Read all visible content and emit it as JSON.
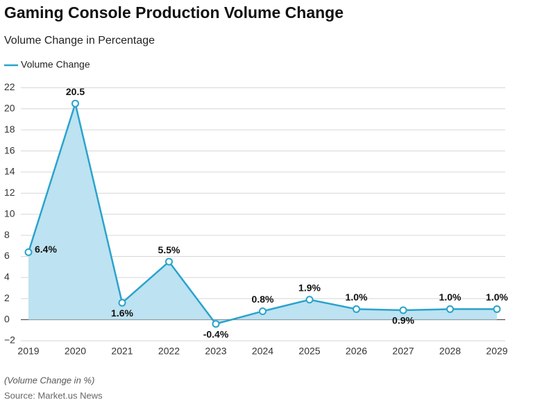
{
  "chart_data": {
    "type": "line",
    "title": "Gaming Console Production Volume Change",
    "subtitle": "Volume Change in Percentage",
    "categories": [
      "2019",
      "2020",
      "2021",
      "2022",
      "2023",
      "2024",
      "2025",
      "2026",
      "2027",
      "2028",
      "2029"
    ],
    "series": [
      {
        "name": "Volume Change",
        "color": "#2aa3cc",
        "fill": "#bde2f1",
        "values": [
          6.4,
          20.5,
          1.6,
          5.5,
          -0.4,
          0.8,
          1.9,
          1.0,
          0.9,
          1.0,
          1.0
        ],
        "value_labels": [
          "6.4%",
          "20.5",
          "1.6%",
          "5.5%",
          "-0.4%",
          "0.8%",
          "1.9%",
          "1.0%",
          "0.9%",
          "1.0%",
          "1.0%"
        ]
      }
    ],
    "ylim": [
      -2,
      22
    ],
    "yticks": [
      {
        "value": -2,
        "label": "−2"
      },
      0,
      2,
      4,
      6,
      8,
      10,
      12,
      14,
      16,
      18,
      20,
      22
    ],
    "grid": true,
    "legend": "top-left",
    "note": "(Volume Change in %)",
    "source": "Source: Market.us News"
  }
}
